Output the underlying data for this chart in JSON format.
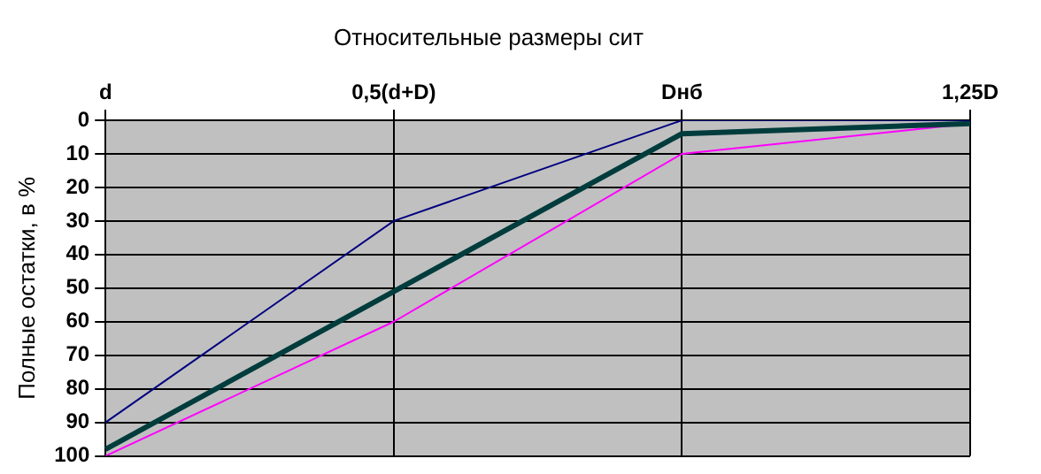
{
  "chart_data": {
    "type": "line",
    "title": "Относительные размеры сит",
    "ylabel": "Полные остатки, в %",
    "categories": [
      "d",
      "0,5(d+D)",
      "Dнб",
      "1,25D"
    ],
    "series": [
      {
        "color": "#000080",
        "values": [
          90,
          30,
          0,
          0
        ]
      },
      {
        "color": "#003c3c",
        "values": [
          98,
          51,
          4,
          1
        ]
      },
      {
        "color": "#ff00ff",
        "values": [
          100,
          60,
          10,
          1
        ]
      }
    ],
    "ylim": [
      100,
      0
    ],
    "yticks": [
      0,
      10,
      20,
      30,
      40,
      50,
      60,
      70,
      80,
      90,
      100
    ],
    "grid": true,
    "legend": false,
    "marker": "none",
    "line_style": "solid"
  }
}
